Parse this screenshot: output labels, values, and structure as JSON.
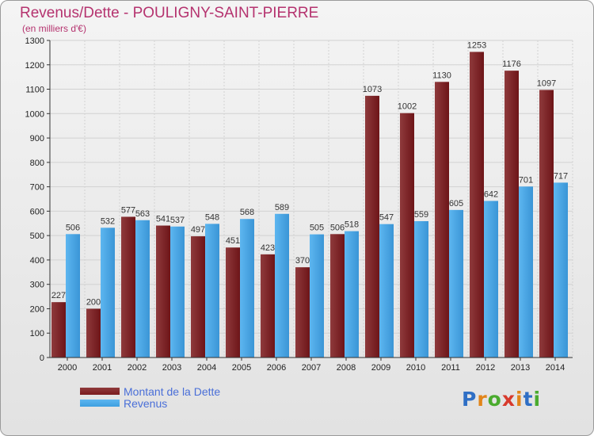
{
  "colors": {
    "dette": "#7a1a1d",
    "dette_light": "#8f3a3c",
    "revenus": "#3d9fe0",
    "revenus_light": "#5db6f0",
    "title": "#b5336f",
    "legend_text": "#4a6fd8",
    "grid": "#d2d2d2"
  },
  "header": {
    "title": "Revenus/Dette - POULIGNY-SAINT-PIERRE",
    "subtitle": "(en milliers d'€)"
  },
  "legend": {
    "dette_label": "Montant de la Dette",
    "revenus_label": "Revenus"
  },
  "logo": {
    "letters": [
      "P",
      "r",
      "o",
      "x",
      "i",
      "t",
      "i"
    ],
    "letter_colors": [
      "#2f6fc5",
      "#e2851a",
      "#4aab2e",
      "#d73a2c",
      "#e2851a",
      "#2f6fc5",
      "#4aab2e"
    ]
  },
  "chart_data": {
    "type": "bar",
    "title": "Revenus/Dette - POULIGNY-SAINT-PIERRE",
    "subtitle": "(en milliers d'€)",
    "xlabel": "",
    "ylabel": "",
    "ylim": [
      0,
      1300
    ],
    "yticks": [
      0,
      100,
      200,
      300,
      400,
      500,
      600,
      700,
      800,
      900,
      1000,
      1100,
      1200,
      1300
    ],
    "grid": true,
    "legend_position": "bottom-left",
    "categories": [
      "2000",
      "2001",
      "2002",
      "2003",
      "2004",
      "2005",
      "2006",
      "2007",
      "2008",
      "2009",
      "2010",
      "2011",
      "2012",
      "2013",
      "2014"
    ],
    "series": [
      {
        "name": "Montant de la Dette",
        "values": [
          227,
          200,
          577,
          541,
          497,
          451,
          423,
          370,
          506,
          1073,
          1002,
          1130,
          1253,
          1176,
          1097
        ]
      },
      {
        "name": "Revenus",
        "values": [
          506,
          532,
          563,
          537,
          548,
          568,
          589,
          505,
          518,
          547,
          559,
          605,
          642,
          701,
          717
        ]
      }
    ]
  }
}
